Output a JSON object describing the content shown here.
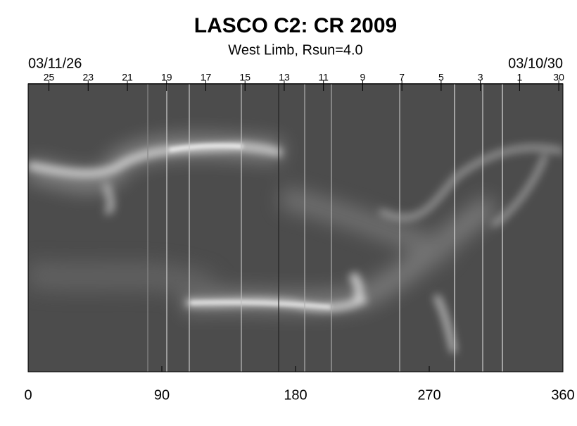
{
  "chart_data": {
    "type": "synoptic-map",
    "title": "LASCO C2: CR 2009",
    "subtitle": "West Limb, Rsun=4.0",
    "start_date": "03/11/26",
    "end_date": "03/10/30",
    "xlim": [
      0,
      360
    ],
    "xticks": [
      0,
      90,
      180,
      270,
      360
    ],
    "top_ticks": [
      {
        "value": 14,
        "label": "25"
      },
      {
        "value": 40.4,
        "label": "23"
      },
      {
        "value": 66.8,
        "label": "21"
      },
      {
        "value": 93.2,
        "label": "19"
      },
      {
        "value": 119.6,
        "label": "17"
      },
      {
        "value": 146,
        "label": "15"
      },
      {
        "value": 172.4,
        "label": "13"
      },
      {
        "value": 198.8,
        "label": "11"
      },
      {
        "value": 225.2,
        "label": "9"
      },
      {
        "value": 251.6,
        "label": "7"
      },
      {
        "value": 278,
        "label": "5"
      },
      {
        "value": 304.4,
        "label": "3"
      },
      {
        "value": 330.8,
        "label": "1"
      },
      {
        "value": 357.2,
        "label": "30"
      }
    ]
  }
}
